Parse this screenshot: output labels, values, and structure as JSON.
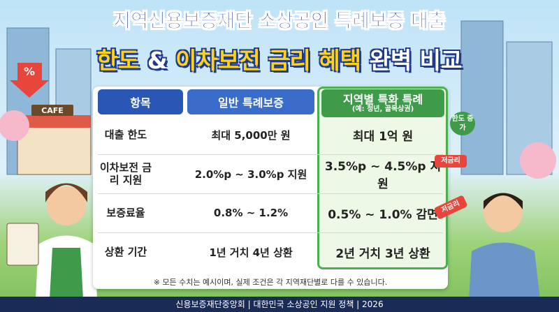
{
  "header": {
    "title_line1": "지역신용보증재단 소상공인 특례보증 대출",
    "title_line2": [
      "한도",
      "&",
      "이차보전 금리 혜택",
      "완벽 비교"
    ]
  },
  "table": {
    "columns": [
      "항목",
      "일반 특례보증",
      "지역별 특화 특례"
    ],
    "column_note": "(예: 청년, 골목상권)",
    "rows": [
      [
        "대출 한도",
        "최대 5,000만 원",
        "최대 1억 원"
      ],
      [
        "이차보전 금리 지원",
        "2.0%p ~ 3.0%p 지원",
        "3.5%p ~ 4.5%p 지원"
      ],
      [
        "보증료율",
        "0.8% ~ 1.2%",
        "0.5% ~ 1.0% 감면"
      ],
      [
        "상환 기간",
        "1년 거치 4년 상환",
        "2년 거치 3년 상환"
      ]
    ]
  },
  "badges": [
    "한도 증가",
    "저금리",
    "저금리"
  ],
  "scene": {
    "shop_sign": "CAFE",
    "percent_sign": "%"
  },
  "note": "※ 모든 수치는 예시이며, 실제 조건은 각 지역재단별로 다를 수 있습니다.",
  "footer": "신용보증재단중앙회 | 대한민국 소상공인 지원 정책 | 2026"
}
